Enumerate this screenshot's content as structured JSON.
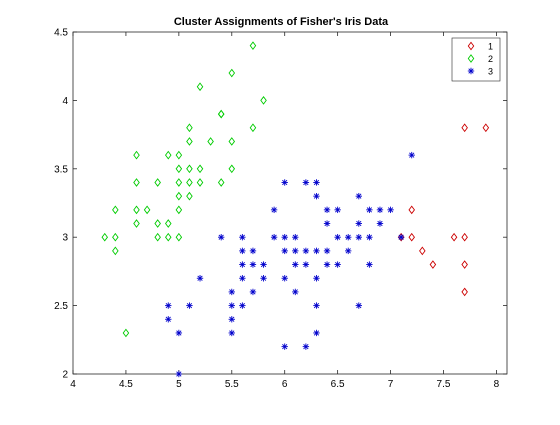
{
  "chart_data": {
    "type": "scatter",
    "title": "Cluster Assignments of Fisher's Iris Data",
    "xlabel": "",
    "ylabel": "",
    "xlim": [
      4,
      8.1
    ],
    "ylim": [
      2,
      4.5
    ],
    "grid": false,
    "legend_position": "top-right",
    "x_ticks": [
      4,
      4.5,
      5,
      5.5,
      6,
      6.5,
      7,
      7.5,
      8
    ],
    "x_tick_labels": [
      "4",
      "4.5",
      "5",
      "5.5",
      "6",
      "6.5",
      "7",
      "7.5",
      "8"
    ],
    "y_ticks": [
      2,
      2.5,
      3,
      3.5,
      4,
      4.5
    ],
    "y_tick_labels": [
      "2",
      "2.5",
      "3",
      "3.5",
      "4",
      "4.5"
    ],
    "series": [
      {
        "name": "1",
        "marker": "diamond",
        "color": "#cc0000",
        "points": [
          [
            7.7,
            3.8
          ],
          [
            7.9,
            3.8
          ],
          [
            7.2,
            3.2
          ],
          [
            7.2,
            3.0
          ],
          [
            7.1,
            3.0
          ],
          [
            7.6,
            3.0
          ],
          [
            7.7,
            3.0
          ],
          [
            7.3,
            2.9
          ],
          [
            7.4,
            2.8
          ],
          [
            7.7,
            2.8
          ],
          [
            7.7,
            2.6
          ]
        ]
      },
      {
        "name": "2",
        "marker": "diamond",
        "color": "#00cc00",
        "points": [
          [
            5.7,
            4.4
          ],
          [
            5.5,
            4.2
          ],
          [
            5.2,
            4.1
          ],
          [
            5.8,
            4.0
          ],
          [
            5.4,
            3.9
          ],
          [
            5.4,
            3.9
          ],
          [
            5.1,
            3.8
          ],
          [
            5.7,
            3.8
          ],
          [
            5.1,
            3.7
          ],
          [
            5.3,
            3.7
          ],
          [
            5.5,
            3.7
          ],
          [
            4.6,
            3.6
          ],
          [
            4.9,
            3.6
          ],
          [
            5.0,
            3.6
          ],
          [
            5.0,
            3.5
          ],
          [
            5.1,
            3.5
          ],
          [
            5.2,
            3.5
          ],
          [
            5.5,
            3.5
          ],
          [
            4.6,
            3.4
          ],
          [
            4.8,
            3.4
          ],
          [
            5.0,
            3.4
          ],
          [
            5.1,
            3.4
          ],
          [
            5.2,
            3.4
          ],
          [
            5.4,
            3.4
          ],
          [
            5.0,
            3.3
          ],
          [
            5.1,
            3.3
          ],
          [
            4.4,
            3.2
          ],
          [
            4.6,
            3.2
          ],
          [
            4.7,
            3.2
          ],
          [
            5.0,
            3.2
          ],
          [
            4.6,
            3.1
          ],
          [
            4.8,
            3.1
          ],
          [
            4.9,
            3.1
          ],
          [
            4.3,
            3.0
          ],
          [
            4.4,
            3.0
          ],
          [
            4.8,
            3.0
          ],
          [
            4.9,
            3.0
          ],
          [
            5.0,
            3.0
          ],
          [
            4.4,
            2.9
          ],
          [
            4.5,
            2.3
          ]
        ]
      },
      {
        "name": "3",
        "marker": "asterisk",
        "color": "#0000cc",
        "points": [
          [
            7.2,
            3.6
          ],
          [
            6.0,
            3.4
          ],
          [
            6.3,
            3.4
          ],
          [
            6.2,
            3.4
          ],
          [
            6.3,
            3.3
          ],
          [
            6.7,
            3.3
          ],
          [
            6.4,
            3.2
          ],
          [
            6.5,
            3.2
          ],
          [
            5.9,
            3.2
          ],
          [
            6.8,
            3.2
          ],
          [
            6.9,
            3.2
          ],
          [
            7.0,
            3.2
          ],
          [
            6.4,
            3.1
          ],
          [
            6.7,
            3.1
          ],
          [
            6.9,
            3.1
          ],
          [
            5.4,
            3.0
          ],
          [
            5.6,
            3.0
          ],
          [
            5.9,
            3.0
          ],
          [
            6.0,
            3.0
          ],
          [
            6.1,
            3.0
          ],
          [
            6.5,
            3.0
          ],
          [
            6.6,
            3.0
          ],
          [
            6.7,
            3.0
          ],
          [
            6.8,
            3.0
          ],
          [
            7.1,
            3.0
          ],
          [
            5.6,
            2.9
          ],
          [
            5.7,
            2.9
          ],
          [
            6.0,
            2.9
          ],
          [
            6.1,
            2.9
          ],
          [
            6.2,
            2.9
          ],
          [
            6.3,
            2.9
          ],
          [
            6.4,
            2.9
          ],
          [
            6.6,
            2.9
          ],
          [
            5.6,
            2.8
          ],
          [
            5.7,
            2.8
          ],
          [
            5.8,
            2.8
          ],
          [
            6.1,
            2.8
          ],
          [
            6.2,
            2.8
          ],
          [
            6.4,
            2.8
          ],
          [
            6.5,
            2.8
          ],
          [
            6.8,
            2.8
          ],
          [
            5.2,
            2.7
          ],
          [
            5.6,
            2.7
          ],
          [
            5.8,
            2.7
          ],
          [
            6.0,
            2.7
          ],
          [
            6.3,
            2.7
          ],
          [
            5.5,
            2.6
          ],
          [
            5.7,
            2.6
          ],
          [
            6.1,
            2.6
          ],
          [
            4.9,
            2.5
          ],
          [
            5.1,
            2.5
          ],
          [
            5.5,
            2.5
          ],
          [
            5.6,
            2.5
          ],
          [
            6.3,
            2.5
          ],
          [
            6.7,
            2.5
          ],
          [
            4.9,
            2.4
          ],
          [
            5.5,
            2.4
          ],
          [
            5.0,
            2.3
          ],
          [
            5.5,
            2.3
          ],
          [
            6.3,
            2.3
          ],
          [
            6.0,
            2.2
          ],
          [
            6.2,
            2.2
          ],
          [
            5.0,
            2.0
          ]
        ]
      }
    ]
  }
}
